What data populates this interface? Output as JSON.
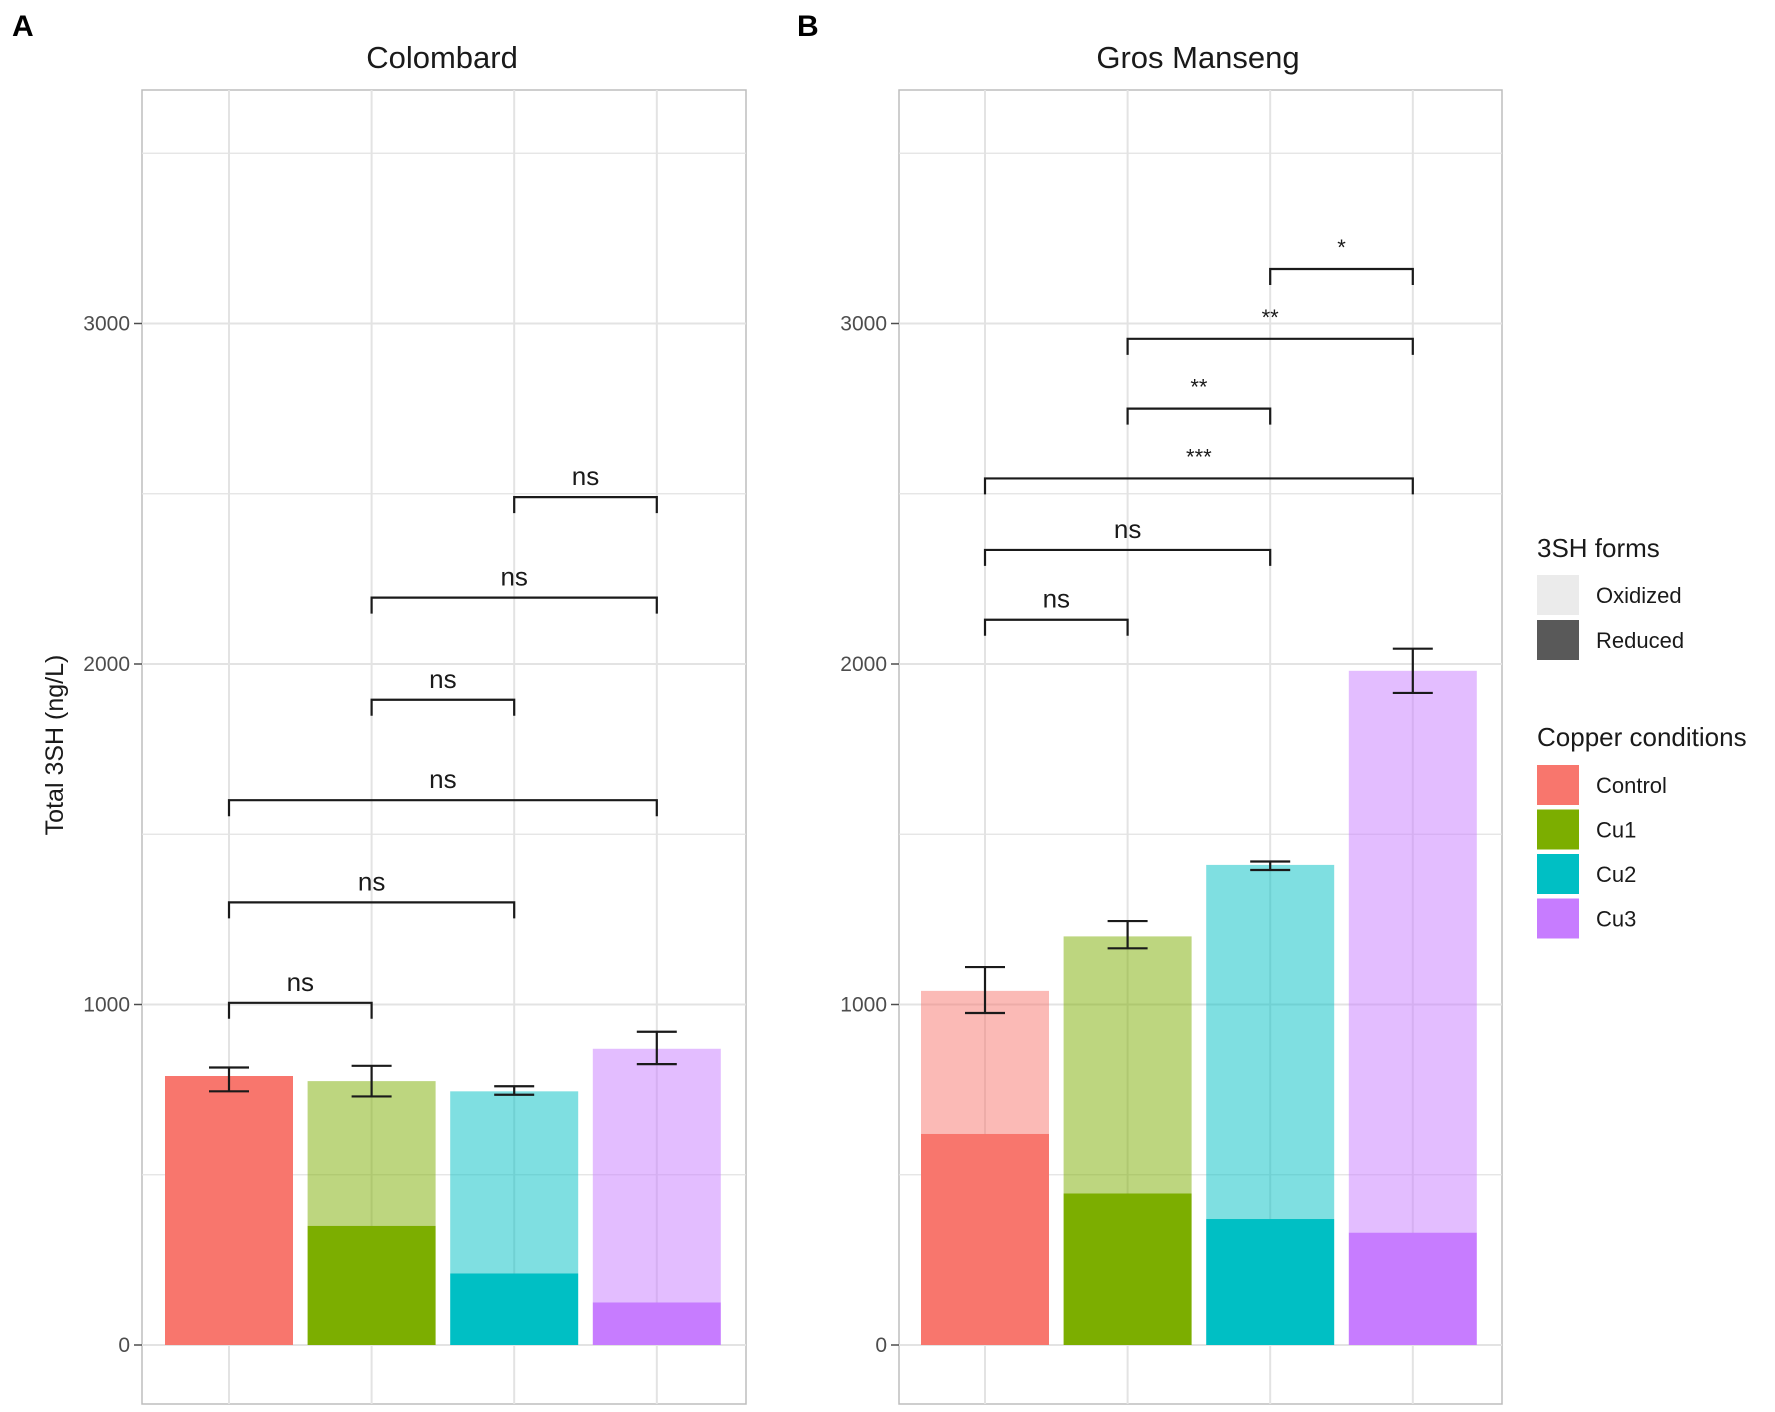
{
  "chart_data": [
    {
      "panel_tag": "A",
      "type": "bar",
      "stacked": true,
      "title": "Colombard",
      "xlabel": "",
      "ylabel": "Total 3SH (ng/L)",
      "ylim": [
        -200,
        3700
      ],
      "yticks": [
        0,
        1000,
        2000,
        3000
      ],
      "grid": true,
      "categories": [
        "Control",
        "Cu1",
        "Cu2",
        "Cu3"
      ],
      "colors": [
        "#F8766D",
        "#7CAE00",
        "#00BFC4",
        "#C77CFF"
      ],
      "series": [
        {
          "name": "Reduced",
          "values": [
            790,
            350,
            210,
            125
          ]
        },
        {
          "name": "Oxidized",
          "values": [
            0,
            425,
            535,
            745
          ]
        }
      ],
      "totals": [
        790,
        775,
        745,
        870
      ],
      "error_bars": [
        {
          "low": 745,
          "high": 815
        },
        {
          "low": 730,
          "high": 820
        },
        {
          "low": 735,
          "high": 760
        },
        {
          "low": 825,
          "high": 920
        }
      ],
      "comparisons": [
        {
          "from": 0,
          "to": 1,
          "y": 1005,
          "label": "ns",
          "star": false
        },
        {
          "from": 0,
          "to": 2,
          "y": 1300,
          "label": "ns",
          "star": false
        },
        {
          "from": 0,
          "to": 3,
          "y": 1600,
          "label": "ns",
          "star": false
        },
        {
          "from": 1,
          "to": 2,
          "y": 1895,
          "label": "ns",
          "star": false
        },
        {
          "from": 1,
          "to": 3,
          "y": 2195,
          "label": "ns",
          "star": false
        },
        {
          "from": 2,
          "to": 3,
          "y": 2490,
          "label": "ns",
          "star": false
        }
      ]
    },
    {
      "panel_tag": "B",
      "type": "bar",
      "stacked": true,
      "title": "Gros Manseng",
      "xlabel": "",
      "ylabel": "",
      "ylim": [
        -200,
        3700
      ],
      "yticks": [
        0,
        1000,
        2000,
        3000
      ],
      "grid": true,
      "categories": [
        "Control",
        "Cu1",
        "Cu2",
        "Cu3"
      ],
      "colors": [
        "#F8766D",
        "#7CAE00",
        "#00BFC4",
        "#C77CFF"
      ],
      "series": [
        {
          "name": "Reduced",
          "values": [
            620,
            445,
            370,
            330
          ]
        },
        {
          "name": "Oxidized",
          "values": [
            420,
            755,
            1040,
            1650
          ]
        }
      ],
      "totals": [
        1040,
        1200,
        1410,
        1980
      ],
      "error_bars": [
        {
          "low": 975,
          "high": 1110
        },
        {
          "low": 1165,
          "high": 1245
        },
        {
          "low": 1395,
          "high": 1420
        },
        {
          "low": 1915,
          "high": 2045
        }
      ],
      "comparisons": [
        {
          "from": 0,
          "to": 1,
          "y": 2130,
          "label": "ns",
          "star": false
        },
        {
          "from": 0,
          "to": 2,
          "y": 2335,
          "label": "ns",
          "star": false
        },
        {
          "from": 0,
          "to": 3,
          "y": 2545,
          "label": "***",
          "star": true
        },
        {
          "from": 1,
          "to": 2,
          "y": 2750,
          "label": "**",
          "star": true
        },
        {
          "from": 1,
          "to": 3,
          "y": 2955,
          "label": "**",
          "star": true
        },
        {
          "from": 2,
          "to": 3,
          "y": 3160,
          "label": "*",
          "star": true
        }
      ]
    }
  ],
  "legend": {
    "forms_title": "3SH forms",
    "forms": [
      {
        "label": "Oxidized",
        "color": "#EBEBEB"
      },
      {
        "label": "Reduced",
        "color": "#595959"
      }
    ],
    "conditions_title": "Copper conditions",
    "conditions": [
      {
        "label": "Control",
        "color": "#F8766D"
      },
      {
        "label": "Cu1",
        "color": "#7CAE00"
      },
      {
        "label": "Cu2",
        "color": "#00BFC4"
      },
      {
        "label": "Cu3",
        "color": "#C77CFF"
      }
    ]
  }
}
